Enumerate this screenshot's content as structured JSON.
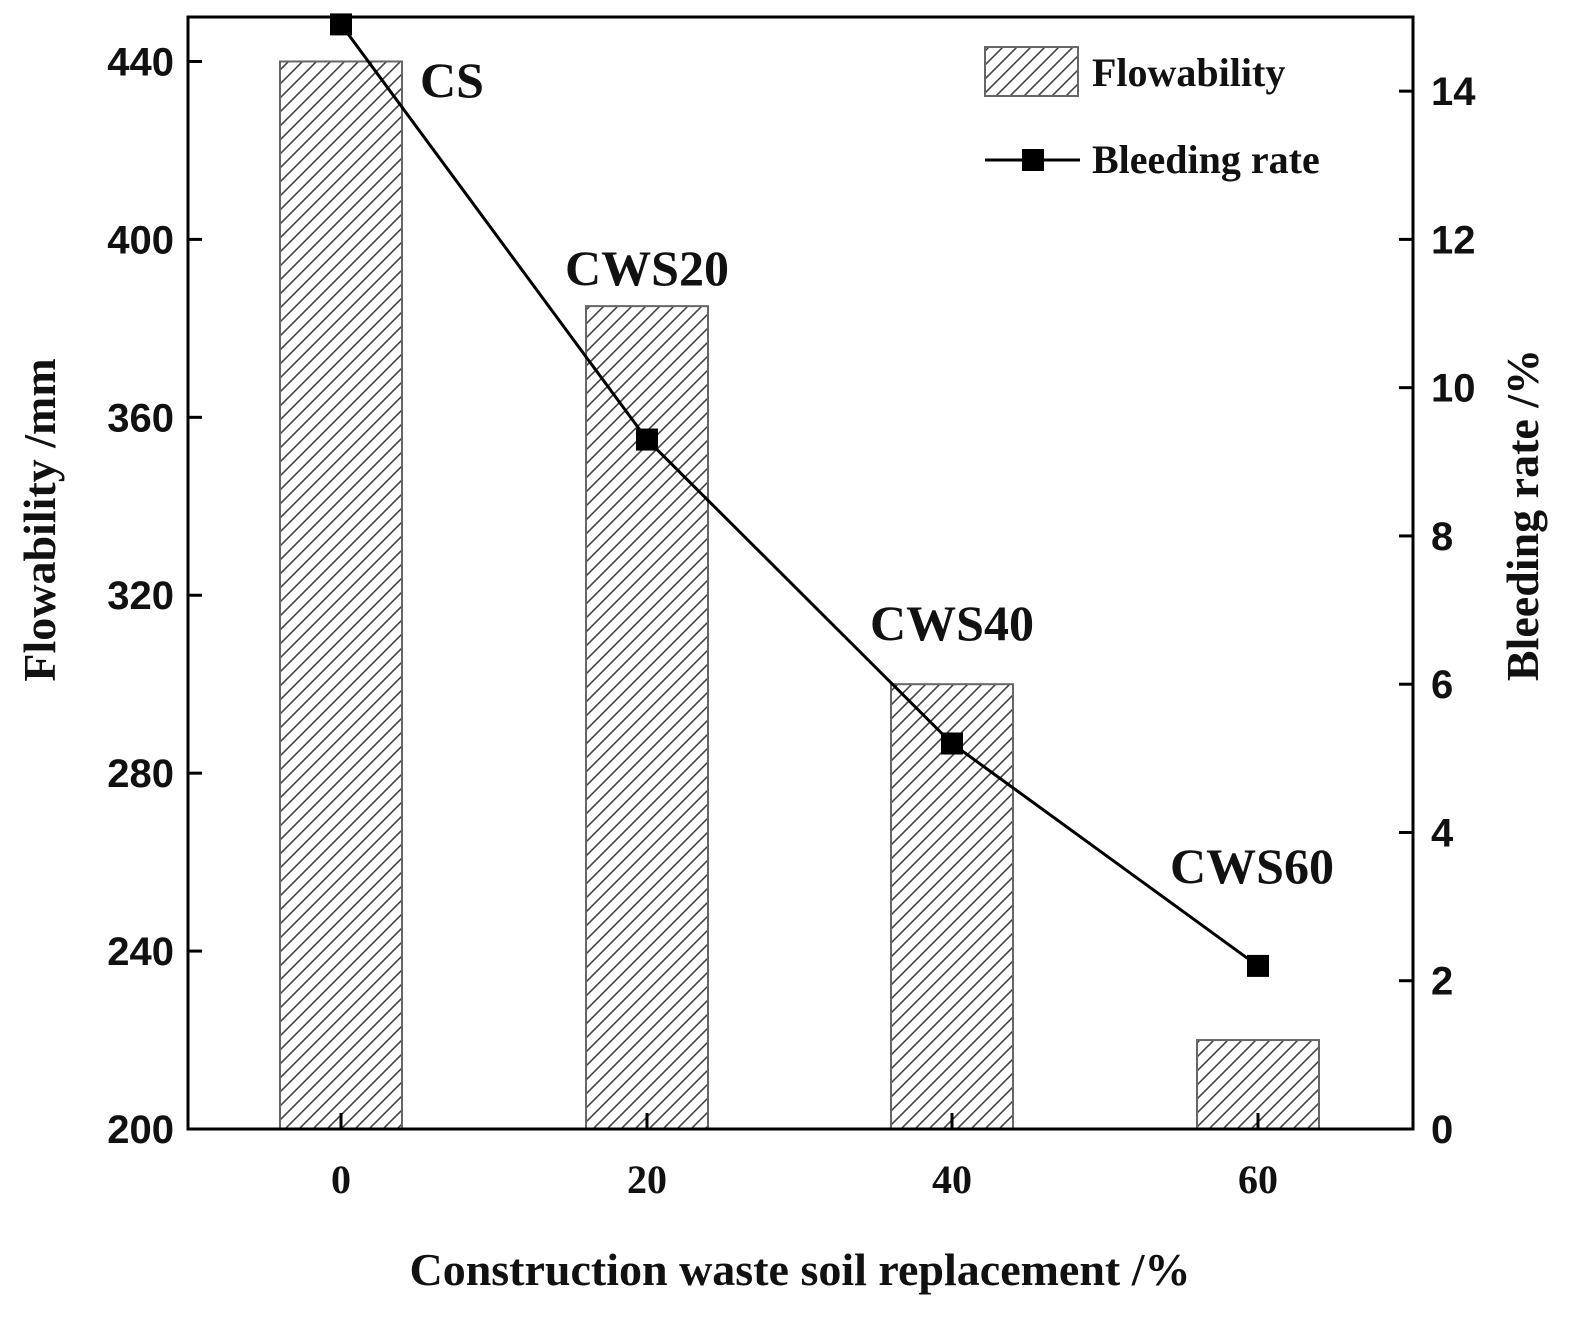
{
  "chart_data": {
    "type": "bar+line",
    "xlabel": "Construction waste soil replacement /%",
    "ylabel_left": "Flowability /mm",
    "ylabel_right": "Bleeding rate /%",
    "categories": [
      "0",
      "20",
      "40",
      "60"
    ],
    "x_values": [
      0,
      20,
      40,
      60
    ],
    "y_left_lim": [
      200,
      450
    ],
    "y_left_ticks": [
      200,
      240,
      280,
      320,
      360,
      400,
      440
    ],
    "y_right_lim": [
      0,
      15
    ],
    "y_right_ticks": [
      0,
      2,
      4,
      6,
      8,
      10,
      12,
      14
    ],
    "series": [
      {
        "name": "Flowability",
        "kind": "bar",
        "axis": "left",
        "values": [
          440,
          385,
          300,
          220
        ]
      },
      {
        "name": "Bleeding rate",
        "kind": "line",
        "axis": "right",
        "values": [
          14.9,
          9.3,
          5.2,
          2.2
        ]
      }
    ],
    "point_labels": [
      "CS",
      "CWS20",
      "CWS40",
      "CWS60"
    ],
    "legend_position": "top-right",
    "grid": false
  }
}
